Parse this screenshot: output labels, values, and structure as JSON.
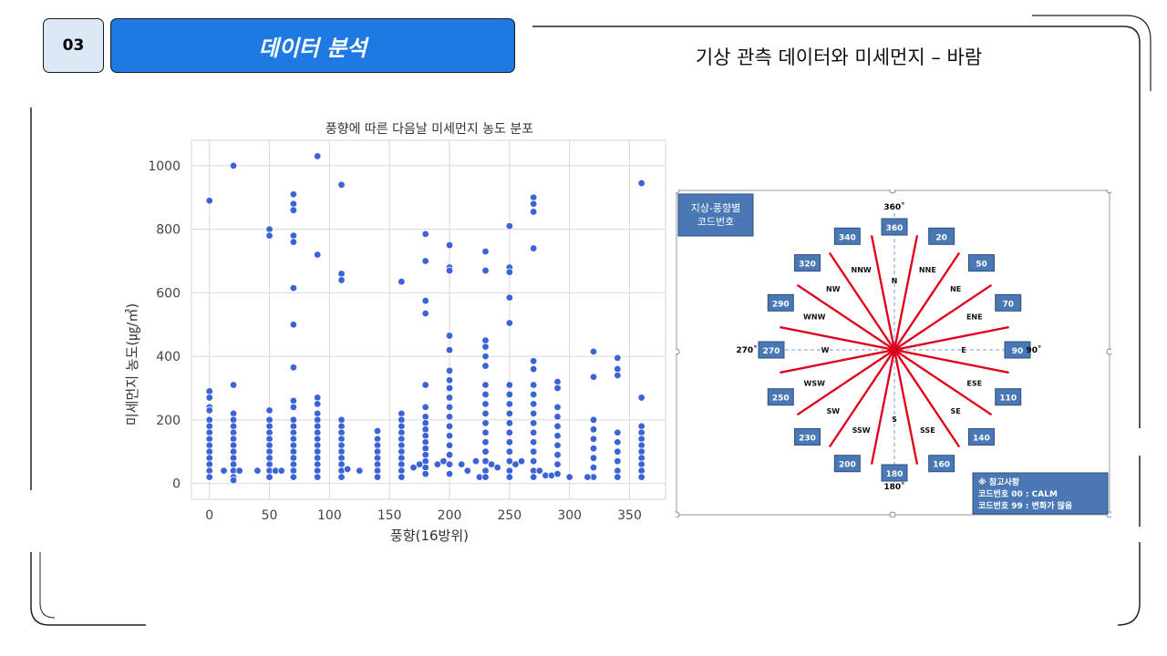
{
  "header": {
    "section_number": "03",
    "section_title": "데이터 분석",
    "subtitle": "기상 관측 데이터와 미세먼지 – 바람"
  },
  "colors": {
    "accent": "#1e7ae2",
    "badge_bg": "#dbe8f5",
    "point": "#3a63d8",
    "compass_line": "#e0001b",
    "code_box": "#4a78b4"
  },
  "chart_data": {
    "type": "scatter",
    "title": "풍향에 따른 다음날 미세먼지 농도 분포",
    "xlabel": "풍향(16방위)",
    "ylabel": "미세먼지 농도(㎍/㎥)",
    "xlim": [
      -15,
      380
    ],
    "ylim": [
      -50,
      1080
    ],
    "xticks": [
      0,
      50,
      100,
      150,
      200,
      250,
      300,
      350
    ],
    "yticks": [
      0,
      200,
      400,
      600,
      800,
      1000
    ],
    "grid": true,
    "series": [
      {
        "points": [
          [
            0,
            890
          ],
          [
            0,
            290
          ],
          [
            0,
            270
          ],
          [
            0,
            240
          ],
          [
            0,
            230
          ],
          [
            0,
            200
          ],
          [
            0,
            180
          ],
          [
            0,
            160
          ],
          [
            0,
            140
          ],
          [
            0,
            120
          ],
          [
            0,
            100
          ],
          [
            0,
            80
          ],
          [
            0,
            60
          ],
          [
            0,
            40
          ],
          [
            0,
            20
          ],
          [
            20,
            1000
          ],
          [
            20,
            310
          ],
          [
            20,
            220
          ],
          [
            20,
            200
          ],
          [
            20,
            180
          ],
          [
            20,
            160
          ],
          [
            20,
            140
          ],
          [
            20,
            120
          ],
          [
            20,
            100
          ],
          [
            20,
            80
          ],
          [
            20,
            60
          ],
          [
            20,
            40
          ],
          [
            20,
            20
          ],
          [
            20,
            10
          ],
          [
            12,
            40
          ],
          [
            25,
            40
          ],
          [
            40,
            40
          ],
          [
            50,
            800
          ],
          [
            50,
            780
          ],
          [
            50,
            230
          ],
          [
            50,
            200
          ],
          [
            50,
            180
          ],
          [
            50,
            160
          ],
          [
            50,
            140
          ],
          [
            50,
            120
          ],
          [
            50,
            100
          ],
          [
            50,
            80
          ],
          [
            50,
            60
          ],
          [
            50,
            40
          ],
          [
            50,
            20
          ],
          [
            55,
            40
          ],
          [
            60,
            40
          ],
          [
            70,
            910
          ],
          [
            70,
            880
          ],
          [
            70,
            860
          ],
          [
            70,
            780
          ],
          [
            70,
            760
          ],
          [
            70,
            615
          ],
          [
            70,
            500
          ],
          [
            70,
            365
          ],
          [
            70,
            260
          ],
          [
            70,
            240
          ],
          [
            70,
            200
          ],
          [
            70,
            180
          ],
          [
            70,
            160
          ],
          [
            70,
            140
          ],
          [
            70,
            120
          ],
          [
            70,
            100
          ],
          [
            70,
            80
          ],
          [
            70,
            60
          ],
          [
            70,
            40
          ],
          [
            70,
            20
          ],
          [
            90,
            1030
          ],
          [
            90,
            720
          ],
          [
            90,
            270
          ],
          [
            90,
            250
          ],
          [
            90,
            220
          ],
          [
            90,
            200
          ],
          [
            90,
            180
          ],
          [
            90,
            160
          ],
          [
            90,
            140
          ],
          [
            90,
            120
          ],
          [
            90,
            100
          ],
          [
            90,
            80
          ],
          [
            90,
            60
          ],
          [
            90,
            40
          ],
          [
            90,
            20
          ],
          [
            110,
            940
          ],
          [
            110,
            660
          ],
          [
            110,
            640
          ],
          [
            110,
            200
          ],
          [
            110,
            180
          ],
          [
            110,
            160
          ],
          [
            110,
            140
          ],
          [
            110,
            120
          ],
          [
            110,
            100
          ],
          [
            110,
            80
          ],
          [
            110,
            60
          ],
          [
            110,
            40
          ],
          [
            110,
            20
          ],
          [
            115,
            45
          ],
          [
            125,
            40
          ],
          [
            140,
            165
          ],
          [
            140,
            140
          ],
          [
            140,
            120
          ],
          [
            140,
            100
          ],
          [
            140,
            80
          ],
          [
            140,
            60
          ],
          [
            140,
            40
          ],
          [
            140,
            20
          ],
          [
            160,
            635
          ],
          [
            160,
            220
          ],
          [
            160,
            200
          ],
          [
            160,
            180
          ],
          [
            160,
            160
          ],
          [
            160,
            140
          ],
          [
            160,
            120
          ],
          [
            160,
            100
          ],
          [
            160,
            80
          ],
          [
            160,
            60
          ],
          [
            160,
            40
          ],
          [
            160,
            20
          ],
          [
            170,
            50
          ],
          [
            175,
            60
          ],
          [
            180,
            785
          ],
          [
            180,
            700
          ],
          [
            180,
            575
          ],
          [
            180,
            535
          ],
          [
            180,
            310
          ],
          [
            180,
            240
          ],
          [
            180,
            210
          ],
          [
            180,
            190
          ],
          [
            180,
            170
          ],
          [
            180,
            150
          ],
          [
            180,
            130
          ],
          [
            180,
            110
          ],
          [
            180,
            90
          ],
          [
            180,
            70
          ],
          [
            180,
            50
          ],
          [
            180,
            30
          ],
          [
            190,
            60
          ],
          [
            195,
            70
          ],
          [
            200,
            750
          ],
          [
            200,
            680
          ],
          [
            200,
            670
          ],
          [
            200,
            465
          ],
          [
            200,
            420
          ],
          [
            200,
            355
          ],
          [
            200,
            325
          ],
          [
            200,
            300
          ],
          [
            200,
            270
          ],
          [
            200,
            240
          ],
          [
            200,
            210
          ],
          [
            200,
            180
          ],
          [
            200,
            150
          ],
          [
            200,
            120
          ],
          [
            200,
            90
          ],
          [
            200,
            60
          ],
          [
            200,
            30
          ],
          [
            210,
            60
          ],
          [
            215,
            40
          ],
          [
            222,
            70
          ],
          [
            225,
            20
          ],
          [
            230,
            730
          ],
          [
            230,
            670
          ],
          [
            230,
            450
          ],
          [
            230,
            430
          ],
          [
            230,
            400
          ],
          [
            230,
            370
          ],
          [
            230,
            310
          ],
          [
            230,
            280
          ],
          [
            230,
            250
          ],
          [
            230,
            220
          ],
          [
            230,
            190
          ],
          [
            230,
            160
          ],
          [
            230,
            130
          ],
          [
            230,
            100
          ],
          [
            230,
            70
          ],
          [
            230,
            40
          ],
          [
            230,
            20
          ],
          [
            235,
            60
          ],
          [
            240,
            50
          ],
          [
            250,
            810
          ],
          [
            250,
            680
          ],
          [
            250,
            665
          ],
          [
            250,
            585
          ],
          [
            250,
            505
          ],
          [
            250,
            310
          ],
          [
            250,
            280
          ],
          [
            250,
            250
          ],
          [
            250,
            220
          ],
          [
            250,
            190
          ],
          [
            250,
            160
          ],
          [
            250,
            130
          ],
          [
            250,
            100
          ],
          [
            250,
            70
          ],
          [
            250,
            40
          ],
          [
            250,
            20
          ],
          [
            255,
            60
          ],
          [
            260,
            70
          ],
          [
            270,
            900
          ],
          [
            270,
            880
          ],
          [
            270,
            855
          ],
          [
            270,
            740
          ],
          [
            270,
            385
          ],
          [
            270,
            360
          ],
          [
            270,
            310
          ],
          [
            270,
            280
          ],
          [
            270,
            250
          ],
          [
            270,
            220
          ],
          [
            270,
            190
          ],
          [
            270,
            160
          ],
          [
            270,
            130
          ],
          [
            270,
            100
          ],
          [
            270,
            70
          ],
          [
            270,
            40
          ],
          [
            270,
            20
          ],
          [
            275,
            40
          ],
          [
            280,
            25
          ],
          [
            285,
            25
          ],
          [
            290,
            320
          ],
          [
            290,
            300
          ],
          [
            290,
            240
          ],
          [
            290,
            210
          ],
          [
            290,
            180
          ],
          [
            290,
            150
          ],
          [
            290,
            120
          ],
          [
            290,
            90
          ],
          [
            290,
            60
          ],
          [
            290,
            30
          ],
          [
            300,
            20
          ],
          [
            320,
            415
          ],
          [
            320,
            335
          ],
          [
            320,
            200
          ],
          [
            320,
            170
          ],
          [
            320,
            140
          ],
          [
            320,
            110
          ],
          [
            320,
            80
          ],
          [
            320,
            50
          ],
          [
            320,
            20
          ],
          [
            315,
            20
          ],
          [
            340,
            395
          ],
          [
            340,
            360
          ],
          [
            340,
            340
          ],
          [
            340,
            160
          ],
          [
            340,
            130
          ],
          [
            340,
            100
          ],
          [
            340,
            70
          ],
          [
            340,
            40
          ],
          [
            340,
            20
          ],
          [
            360,
            945
          ],
          [
            360,
            270
          ],
          [
            360,
            180
          ],
          [
            360,
            160
          ],
          [
            360,
            140
          ],
          [
            360,
            120
          ],
          [
            360,
            100
          ],
          [
            360,
            80
          ],
          [
            360,
            60
          ],
          [
            360,
            40
          ],
          [
            360,
            20
          ]
        ]
      }
    ]
  },
  "wind_rose": {
    "legend_title": "지상-풍향별\n코드번호",
    "axis_labels": {
      "top": "360˚",
      "bottom": "180˚",
      "left": "270˚",
      "right": "90˚"
    },
    "codes": [
      "360",
      "20",
      "50",
      "70",
      "90",
      "110",
      "140",
      "160",
      "180",
      "200",
      "230",
      "250",
      "270",
      "290",
      "320",
      "340"
    ],
    "directions": [
      "N",
      "NNE",
      "NE",
      "ENE",
      "E",
      "ESE",
      "SE",
      "SSE",
      "S",
      "SSW",
      "SW",
      "WSW",
      "W",
      "WNW",
      "NW",
      "NNW"
    ],
    "note_title": "※ 참고사항",
    "note_line1": "코드번호 00 : CALM",
    "note_line2": "코드번호 99 : 변화가 많음"
  }
}
